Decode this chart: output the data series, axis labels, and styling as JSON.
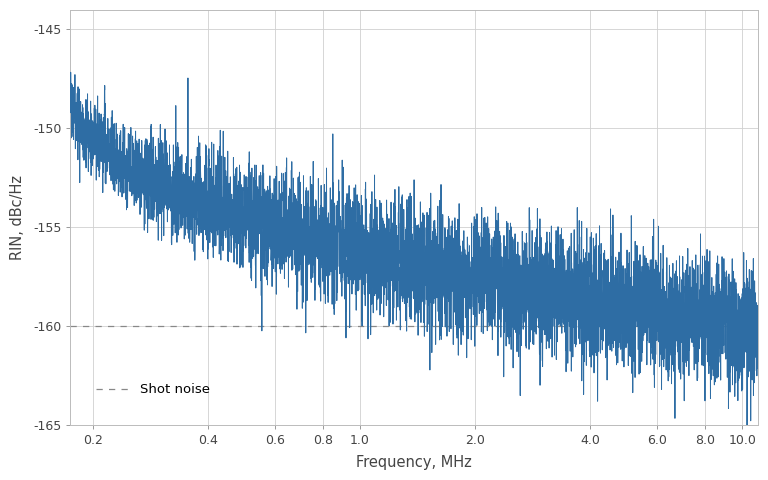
{
  "title": "",
  "xlabel": "Frequency, MHz",
  "ylabel": "RIN, dBc/Hz",
  "xlim_log": [
    0.175,
    11.0
  ],
  "ylim": [
    -165,
    -144
  ],
  "yticks": [
    -165,
    -160,
    -155,
    -150,
    -145
  ],
  "shot_noise_level": -160,
  "shot_noise_label": "Shot noise",
  "line_color": "#2e6da4",
  "shot_noise_color": "#888888",
  "background_color": "#ffffff",
  "grid_color": "#d0d0d0",
  "xticks_major": [
    0.2,
    0.4,
    0.6,
    0.8,
    1.0,
    2.0,
    4.0,
    6.0,
    8.0,
    10.0
  ],
  "xtick_labels": [
    "0.2",
    "0.4",
    "0.6",
    "0.8",
    "1.0",
    "2.0",
    "4.0",
    "6.0",
    "8.0",
    "10.0"
  ],
  "seed": 1234,
  "n_points": 6000
}
